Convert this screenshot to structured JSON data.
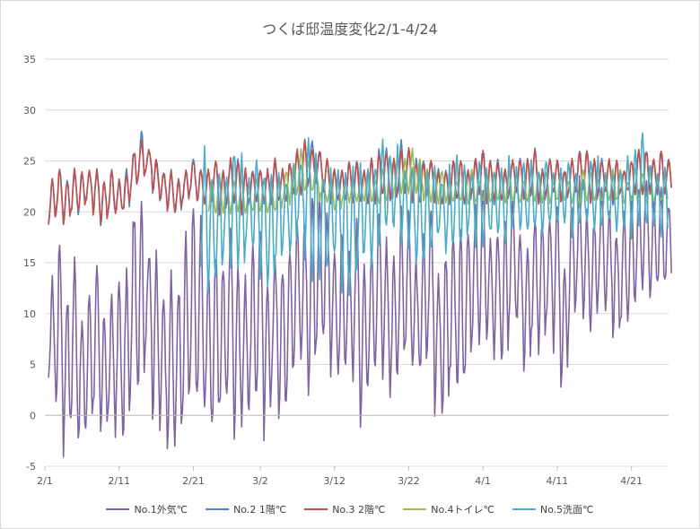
{
  "chart_data": {
    "type": "line",
    "title": "つくば邸温度変化2/1-4/24",
    "xlabel": "",
    "ylabel": "",
    "ylim": [
      -5,
      35
    ],
    "yticks": [
      -5,
      0,
      5,
      10,
      15,
      20,
      25,
      30,
      35
    ],
    "x_start_day": 0,
    "x_end_day": 84,
    "xticks": [
      {
        "day": 0,
        "label": "2/1"
      },
      {
        "day": 10,
        "label": "2/11"
      },
      {
        "day": 20,
        "label": "2/21"
      },
      {
        "day": 29,
        "label": "3/2"
      },
      {
        "day": 39,
        "label": "3/12"
      },
      {
        "day": 49,
        "label": "3/22"
      },
      {
        "day": 59,
        "label": "4/1"
      },
      {
        "day": 69,
        "label": "4/11"
      },
      {
        "day": 79,
        "label": "4/21"
      }
    ],
    "series": [
      {
        "name": "No.1外気℃",
        "color": "#8064a2",
        "start_day": 0.5,
        "daily_min": [
          3,
          1,
          -3,
          0,
          -2,
          -1,
          1,
          -2,
          0,
          -1,
          -3,
          3,
          2,
          7,
          0,
          -1,
          -2,
          -3,
          -1,
          2,
          1,
          0,
          -1,
          0,
          2,
          -1,
          0,
          1,
          3,
          -2,
          3,
          -1,
          2,
          5,
          5,
          3,
          7,
          8,
          4,
          3,
          5,
          4,
          0,
          4,
          6,
          4,
          2,
          5,
          6,
          4,
          4,
          7,
          1,
          0,
          4,
          2,
          4,
          7,
          8,
          8,
          6,
          5,
          9,
          9,
          5,
          8,
          7,
          9,
          7,
          2,
          9,
          11,
          9,
          9,
          12,
          11,
          8,
          9,
          10,
          12,
          13,
          12,
          13,
          13
        ],
        "daily_max": [
          13,
          17,
          12,
          15,
          9,
          12,
          14,
          10,
          11,
          13,
          14,
          20,
          22,
          16,
          15,
          12,
          13,
          13,
          17,
          20,
          19,
          14,
          16,
          15,
          19,
          15,
          13,
          16,
          19,
          14,
          16,
          15,
          17,
          20,
          19,
          22,
          22,
          20,
          17,
          17,
          16,
          19,
          15,
          17,
          20,
          17,
          16,
          20,
          19,
          15,
          17,
          20,
          14,
          16,
          17,
          17,
          19,
          20,
          22,
          17,
          18,
          19,
          21,
          18,
          17,
          20,
          19,
          20,
          21,
          14,
          21,
          23,
          20,
          19,
          22,
          20,
          18,
          20,
          21,
          22,
          23,
          21,
          22,
          21
        ]
      },
      {
        "name": "No.2 1階℃",
        "color": "#4f81bd",
        "start_day": 0.5,
        "daily_min": [
          19,
          20,
          19,
          20,
          20,
          21,
          20,
          19,
          20,
          20,
          20,
          22,
          23,
          24,
          22,
          21,
          20,
          20,
          21,
          22,
          21,
          21,
          21,
          20,
          21,
          21,
          20,
          21,
          21,
          21,
          21,
          21,
          21,
          22,
          22,
          23,
          23,
          22,
          21,
          21,
          21,
          21,
          21,
          21,
          21,
          22,
          21,
          22,
          22,
          21,
          21,
          22,
          21,
          21,
          21,
          21,
          21,
          22,
          22,
          21,
          21,
          21,
          22,
          22,
          21,
          22,
          21,
          22,
          22,
          21,
          22,
          22,
          22,
          21,
          22,
          22,
          21,
          22,
          22,
          22,
          22,
          22,
          22,
          22
        ],
        "daily_max": [
          23,
          24,
          23,
          24,
          24,
          24,
          24,
          23,
          24,
          23,
          24,
          26,
          28,
          26,
          25,
          24,
          24,
          23,
          24,
          25,
          24,
          24,
          25,
          24,
          25,
          25,
          24,
          24,
          24,
          24,
          25,
          24,
          25,
          26,
          27,
          27,
          26,
          25,
          24,
          24,
          25,
          25,
          24,
          25,
          26,
          26,
          25,
          27,
          26,
          25,
          25,
          25,
          24,
          24,
          25,
          25,
          24,
          25,
          26,
          25,
          25,
          24,
          25,
          25,
          25,
          26,
          24,
          25,
          25,
          24,
          25,
          26,
          26,
          25,
          25,
          25,
          25,
          24,
          25,
          26,
          26,
          25,
          26,
          25
        ]
      },
      {
        "name": "No.3 2階℃",
        "color": "#c0504d",
        "start_day": 0.5,
        "daily_min": [
          19,
          20,
          19,
          20,
          20,
          21,
          20,
          19,
          20,
          20,
          20,
          22,
          23,
          24,
          22,
          21,
          20,
          20,
          21,
          22,
          21,
          21,
          21,
          20,
          21,
          21,
          20,
          21,
          21,
          21,
          21,
          21,
          21,
          22,
          22,
          23,
          23,
          22,
          21,
          21,
          21,
          21,
          21,
          21,
          21,
          22,
          21,
          22,
          22,
          21,
          21,
          22,
          21,
          21,
          21,
          21,
          21,
          22,
          22,
          21,
          21,
          21,
          22,
          22,
          21,
          22,
          21,
          22,
          22,
          21,
          22,
          22,
          22,
          21,
          22,
          22,
          21,
          22,
          22,
          22,
          22,
          22,
          22,
          22
        ],
        "daily_max": [
          23,
          24,
          23,
          24,
          24,
          24,
          24,
          23,
          24,
          23,
          24,
          26,
          27,
          26,
          25,
          24,
          24,
          23,
          24,
          25,
          24,
          24,
          25,
          24,
          25,
          25,
          24,
          24,
          24,
          24,
          25,
          24,
          25,
          26,
          27,
          26,
          26,
          25,
          24,
          24,
          25,
          25,
          24,
          25,
          26,
          26,
          25,
          26,
          26,
          25,
          25,
          25,
          24,
          24,
          25,
          25,
          24,
          25,
          26,
          25,
          25,
          24,
          25,
          25,
          25,
          26,
          24,
          25,
          25,
          24,
          25,
          26,
          26,
          25,
          25,
          25,
          25,
          24,
          25,
          26,
          26,
          25,
          26,
          25
        ]
      },
      {
        "name": "No.4トイレ℃",
        "color": "#9bbb59",
        "start_day": 22,
        "daily_min": [
          20,
          20,
          20,
          20,
          20,
          20,
          20,
          20,
          20,
          20,
          21,
          21,
          22,
          22,
          22,
          21,
          21,
          20,
          21,
          21,
          21,
          21,
          21,
          21,
          21,
          22,
          22,
          22,
          22,
          21,
          21,
          21,
          21,
          21,
          21,
          21,
          21,
          21,
          21,
          21,
          21,
          21,
          21,
          21,
          21,
          21,
          21,
          21,
          21,
          21,
          21,
          21,
          21,
          21,
          21,
          21,
          21,
          21,
          21,
          21,
          21,
          21
        ],
        "daily_max": [
          23,
          23,
          23,
          23,
          23,
          22,
          23,
          23,
          22,
          23,
          24,
          25,
          26,
          25,
          24,
          23,
          23,
          23,
          23,
          23,
          23,
          24,
          23,
          24,
          25,
          25,
          25,
          26,
          25,
          24,
          24,
          24,
          23,
          23,
          24,
          24,
          23,
          24,
          24,
          24,
          24,
          23,
          23,
          24,
          24,
          24,
          23,
          24,
          23,
          23,
          24,
          24,
          23,
          23,
          24,
          24,
          23,
          24,
          24,
          24,
          23,
          23
        ]
      },
      {
        "name": "No.5洗面℃",
        "color": "#4bacc6",
        "start_day": 21,
        "daily_min": [
          14,
          12,
          14,
          16,
          15,
          14,
          17,
          16,
          14,
          13,
          15,
          17,
          16,
          19,
          15,
          14,
          14,
          15,
          16,
          13,
          12,
          15,
          16,
          15,
          17,
          18,
          19,
          17,
          16,
          15,
          15,
          17,
          18,
          16,
          17,
          17,
          19,
          17,
          17,
          18,
          18,
          17,
          19,
          18,
          18,
          19,
          18,
          19,
          19,
          19,
          18,
          19,
          19,
          18,
          19,
          19,
          18,
          19,
          18,
          19,
          19,
          19,
          18
        ],
        "daily_max": [
          26,
          24,
          24,
          24,
          26,
          25,
          23,
          25,
          24,
          24,
          24,
          23,
          24,
          25,
          27,
          25,
          24,
          24,
          24,
          24,
          24,
          25,
          24,
          25,
          27,
          26,
          26,
          24,
          25,
          24,
          24,
          24,
          23,
          24,
          25,
          24,
          24,
          25,
          24,
          24,
          24,
          25,
          24,
          25,
          25,
          24,
          25,
          24,
          24,
          25,
          24,
          23,
          25,
          25,
          24,
          24,
          24,
          25,
          26,
          28,
          25,
          24,
          24
        ]
      }
    ],
    "legend_position": "bottom",
    "grid": true
  }
}
